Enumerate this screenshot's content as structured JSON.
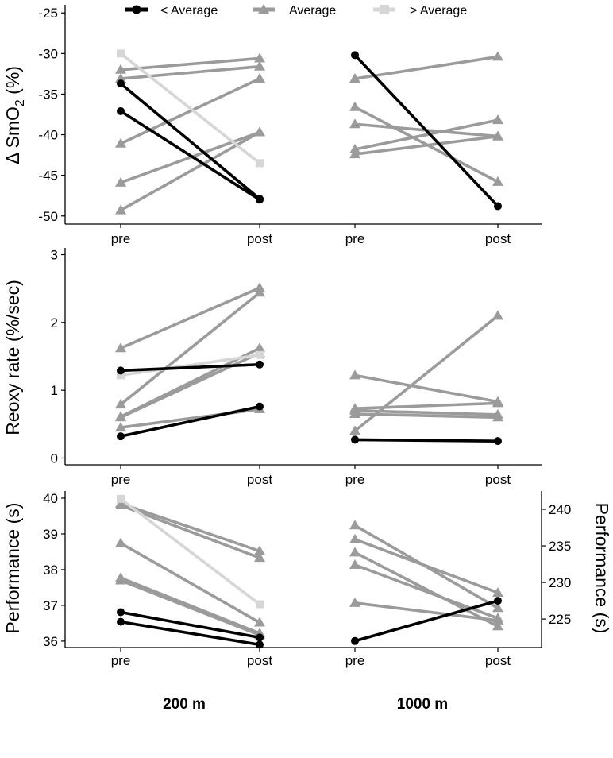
{
  "legend": [
    {
      "label": "< Average",
      "color": "#000000",
      "marker": "circle"
    },
    {
      "label": "Average",
      "color": "#9b9b9b",
      "marker": "triangle"
    },
    {
      "label": "> Average",
      "color": "#d6d6d6",
      "marker": "square"
    }
  ],
  "chart_data": [
    {
      "type": "line",
      "id": "smo2",
      "ylabel": "Δ SmO2 (%)",
      "ylim": [
        -51,
        -24
      ],
      "yticks": [
        -25,
        -30,
        -35,
        -40,
        -45,
        -50
      ],
      "groups": [
        {
          "label": "200 m",
          "x": [
            "pre",
            "post"
          ],
          "series": [
            {
              "category": "Average",
              "values": [
                -32.0,
                -30.6
              ]
            },
            {
              "category": "Average",
              "values": [
                -33.1,
                -31.6
              ]
            },
            {
              "category": "Average",
              "values": [
                -41.1,
                -33.1
              ]
            },
            {
              "category": "Average",
              "values": [
                -45.9,
                -39.7
              ]
            },
            {
              "category": "Average",
              "values": [
                -49.3,
                -39.7
              ]
            },
            {
              "category": "> Average",
              "values": [
                -30.0,
                -43.5
              ]
            },
            {
              "category": "< Average",
              "values": [
                -33.7,
                -47.9
              ]
            },
            {
              "category": "< Average",
              "values": [
                -37.1,
                -48.0
              ]
            }
          ]
        },
        {
          "label": "1000 m",
          "x": [
            "pre",
            "post"
          ],
          "series": [
            {
              "category": "Average",
              "values": [
                -33.1,
                -30.4
              ]
            },
            {
              "category": "Average",
              "values": [
                -36.6,
                -45.8
              ]
            },
            {
              "category": "Average",
              "values": [
                -38.7,
                -40.2
              ]
            },
            {
              "category": "Average",
              "values": [
                -41.8,
                -38.2
              ]
            },
            {
              "category": "Average",
              "values": [
                -42.4,
                -40.2
              ]
            },
            {
              "category": "< Average",
              "values": [
                -30.2,
                -48.8
              ]
            }
          ]
        }
      ]
    },
    {
      "type": "line",
      "id": "reoxy",
      "ylabel": "Reoxy rate (%/sec)",
      "ylim": [
        -0.1,
        3.1
      ],
      "yticks": [
        0,
        1,
        2,
        3
      ],
      "groups": [
        {
          "label": "200 m",
          "x": [
            "pre",
            "post"
          ],
          "series": [
            {
              "category": "Average",
              "values": [
                1.62,
                2.51
              ]
            },
            {
              "category": "Average",
              "values": [
                0.79,
                2.44
              ]
            },
            {
              "category": "Average",
              "values": [
                0.61,
                1.62
              ]
            },
            {
              "category": "Average",
              "values": [
                0.6,
                1.55
              ]
            },
            {
              "category": "Average",
              "values": [
                0.45,
                0.72
              ]
            },
            {
              "category": "> Average",
              "values": [
                1.22,
                1.52
              ]
            },
            {
              "category": "< Average",
              "values": [
                1.29,
                1.38
              ]
            },
            {
              "category": "< Average",
              "values": [
                0.32,
                0.76
              ]
            }
          ]
        },
        {
          "label": "1000 m",
          "x": [
            "pre",
            "post"
          ],
          "series": [
            {
              "category": "Average",
              "values": [
                1.22,
                0.83
              ]
            },
            {
              "category": "Average",
              "values": [
                0.4,
                2.1
              ]
            },
            {
              "category": "Average",
              "values": [
                0.73,
                0.81
              ]
            },
            {
              "category": "Average",
              "values": [
                0.7,
                0.64
              ]
            },
            {
              "category": "Average",
              "values": [
                0.65,
                0.6
              ]
            },
            {
              "category": "< Average",
              "values": [
                0.27,
                0.25
              ]
            }
          ]
        }
      ]
    },
    {
      "type": "line",
      "id": "performance",
      "ylabel": "Performance (s)",
      "ylabel_right": "Performance (s)",
      "ylim": [
        35.82,
        40.2
      ],
      "yticks": [
        36,
        37,
        38,
        39,
        40
      ],
      "ylim_right": [
        221.1,
        242.5
      ],
      "yticks_right": [
        225,
        230,
        235,
        240
      ],
      "groups": [
        {
          "label": "200 m",
          "axis": "left",
          "x": [
            "pre",
            "post"
          ],
          "series": [
            {
              "category": "Average",
              "values": [
                39.85,
                38.52
              ]
            },
            {
              "category": "Average",
              "values": [
                39.8,
                38.33
              ]
            },
            {
              "category": "Average",
              "values": [
                38.74,
                36.52
              ]
            },
            {
              "category": "Average",
              "values": [
                37.77,
                36.22
              ]
            },
            {
              "category": "Average",
              "values": [
                37.7,
                36.17
              ]
            },
            {
              "category": "> Average",
              "values": [
                39.98,
                37.03
              ]
            },
            {
              "category": "< Average",
              "values": [
                36.81,
                36.1
              ]
            },
            {
              "category": "< Average",
              "values": [
                36.54,
                35.9
              ]
            }
          ]
        },
        {
          "label": "1000 m",
          "axis": "right",
          "x": [
            "pre",
            "post"
          ],
          "series": [
            {
              "category": "Average",
              "values": [
                237.8,
                226.5
              ]
            },
            {
              "category": "Average",
              "values": [
                235.9,
                228.6
              ]
            },
            {
              "category": "Average",
              "values": [
                234.1,
                224.0
              ]
            },
            {
              "category": "Average",
              "values": [
                232.4,
                225.1
              ]
            },
            {
              "category": "Average",
              "values": [
                227.2,
                224.8
              ]
            },
            {
              "category": "< Average",
              "values": [
                222.0,
                227.5
              ]
            }
          ]
        }
      ]
    }
  ]
}
